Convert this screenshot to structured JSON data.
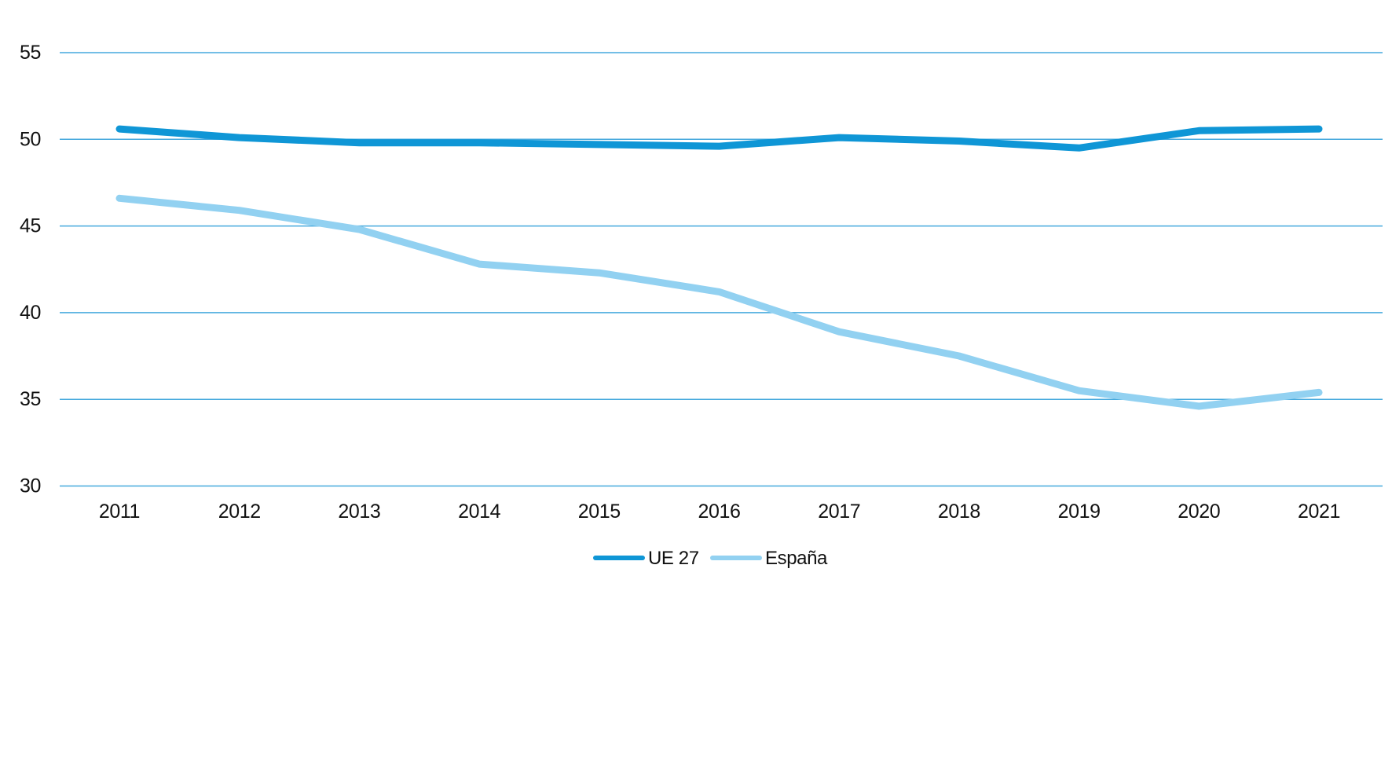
{
  "chart_data": {
    "type": "line",
    "title": "",
    "x": [
      "2011",
      "2012",
      "2013",
      "2014",
      "2015",
      "2016",
      "2017",
      "2018",
      "2019",
      "2020",
      "2021"
    ],
    "series": [
      {
        "name": "UE 27",
        "color": "#0F96D6",
        "values": [
          50.6,
          50.1,
          49.8,
          49.8,
          49.7,
          49.6,
          50.1,
          49.9,
          49.5,
          50.5,
          50.6
        ]
      },
      {
        "name": "España",
        "color": "#92D1F1",
        "values": [
          46.6,
          45.9,
          44.8,
          42.8,
          42.3,
          41.2,
          38.9,
          37.5,
          35.5,
          34.6,
          35.4
        ]
      }
    ],
    "xlabel": "",
    "ylabel": "",
    "ylim": [
      30,
      55
    ],
    "yticks": [
      55,
      50,
      45,
      40,
      35,
      30
    ],
    "grid": "horizontal-only",
    "gridline_color": "#45A9DD",
    "tick_label_color": "#111111",
    "background_color": "#FFFFFF",
    "legend_position": "bottom-center"
  }
}
